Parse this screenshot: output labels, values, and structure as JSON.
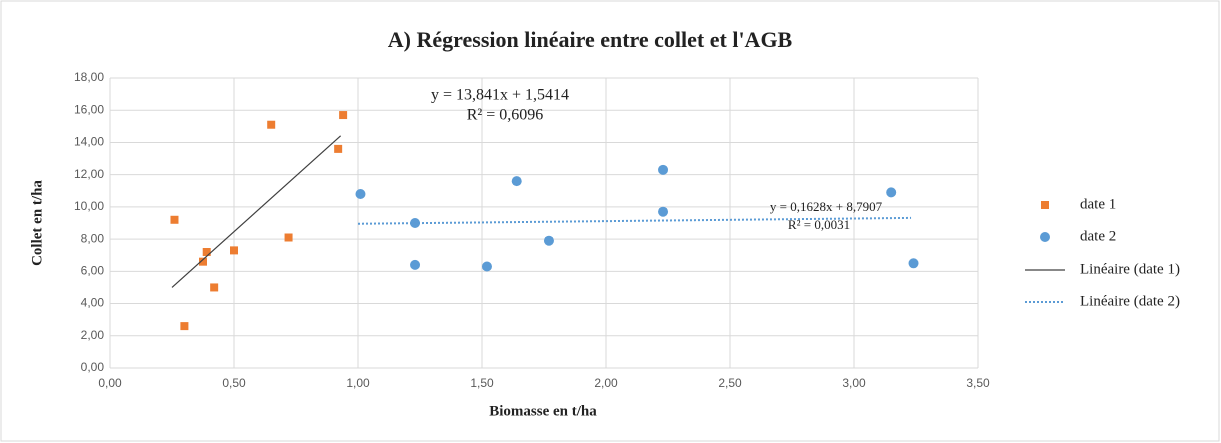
{
  "chart_data": {
    "type": "scatter",
    "title": "A) Régression linéaire entre collet et l'AGB",
    "xlabel": "Biomasse en t/ha",
    "ylabel": "Collet en t/ha",
    "xlim": [
      0,
      3.5
    ],
    "ylim": [
      0,
      18
    ],
    "xticks": [
      {
        "value": 0,
        "label": "0,00"
      },
      {
        "value": 0.5,
        "label": "0,50"
      },
      {
        "value": 1,
        "label": "1,00"
      },
      {
        "value": 1.5,
        "label": "1,50"
      },
      {
        "value": 2,
        "label": "2,00"
      },
      {
        "value": 2.5,
        "label": "2,50"
      },
      {
        "value": 3,
        "label": "3,00"
      },
      {
        "value": 3.5,
        "label": "3,50"
      }
    ],
    "yticks": [
      {
        "value": 0,
        "label": "0,00"
      },
      {
        "value": 2,
        "label": "2,00"
      },
      {
        "value": 4,
        "label": "4,00"
      },
      {
        "value": 6,
        "label": "6,00"
      },
      {
        "value": 8,
        "label": "8,00"
      },
      {
        "value": 10,
        "label": "10,00"
      },
      {
        "value": 12,
        "label": "12,00"
      },
      {
        "value": 14,
        "label": "14,00"
      },
      {
        "value": 16,
        "label": "16,00"
      },
      {
        "value": 18,
        "label": "18,00"
      }
    ],
    "grid": true,
    "legend": "right",
    "series": [
      {
        "name": "date 1",
        "color": "#ed7d31",
        "marker": "square",
        "x": [
          0.26,
          0.3,
          0.375,
          0.39,
          0.42,
          0.5,
          0.65,
          0.72,
          0.92,
          0.94
        ],
        "values": [
          9.2,
          2.6,
          6.6,
          7.2,
          5.0,
          7.3,
          15.1,
          8.1,
          13.6,
          15.7
        ]
      },
      {
        "name": "date 2",
        "color": "#5b9bd5",
        "marker": "circle",
        "x": [
          1.01,
          1.23,
          1.23,
          1.52,
          1.64,
          1.77,
          2.23,
          2.23,
          3.15,
          3.24
        ],
        "values": [
          10.8,
          9.0,
          6.4,
          6.3,
          11.6,
          7.9,
          12.3,
          9.7,
          10.9,
          6.5
        ]
      }
    ],
    "trendlines": [
      {
        "name": "Linéaire (date 1)",
        "color": "#404040",
        "style": "solid",
        "slope": 13.841,
        "intercept": 1.5414,
        "x": [
          0.25,
          0.93
        ],
        "equation": "y = 13,841x + 1,5414",
        "r2": "R² = 0,6096"
      },
      {
        "name": "Linéaire (date 2)",
        "color": "#5b9bd5",
        "style": "dotted",
        "slope": 0.1628,
        "intercept": 8.7907,
        "x": [
          1.0,
          3.23
        ],
        "equation": "y = 0,1628x + 8,7907",
        "r2": "R² = 0,0031"
      }
    ]
  }
}
